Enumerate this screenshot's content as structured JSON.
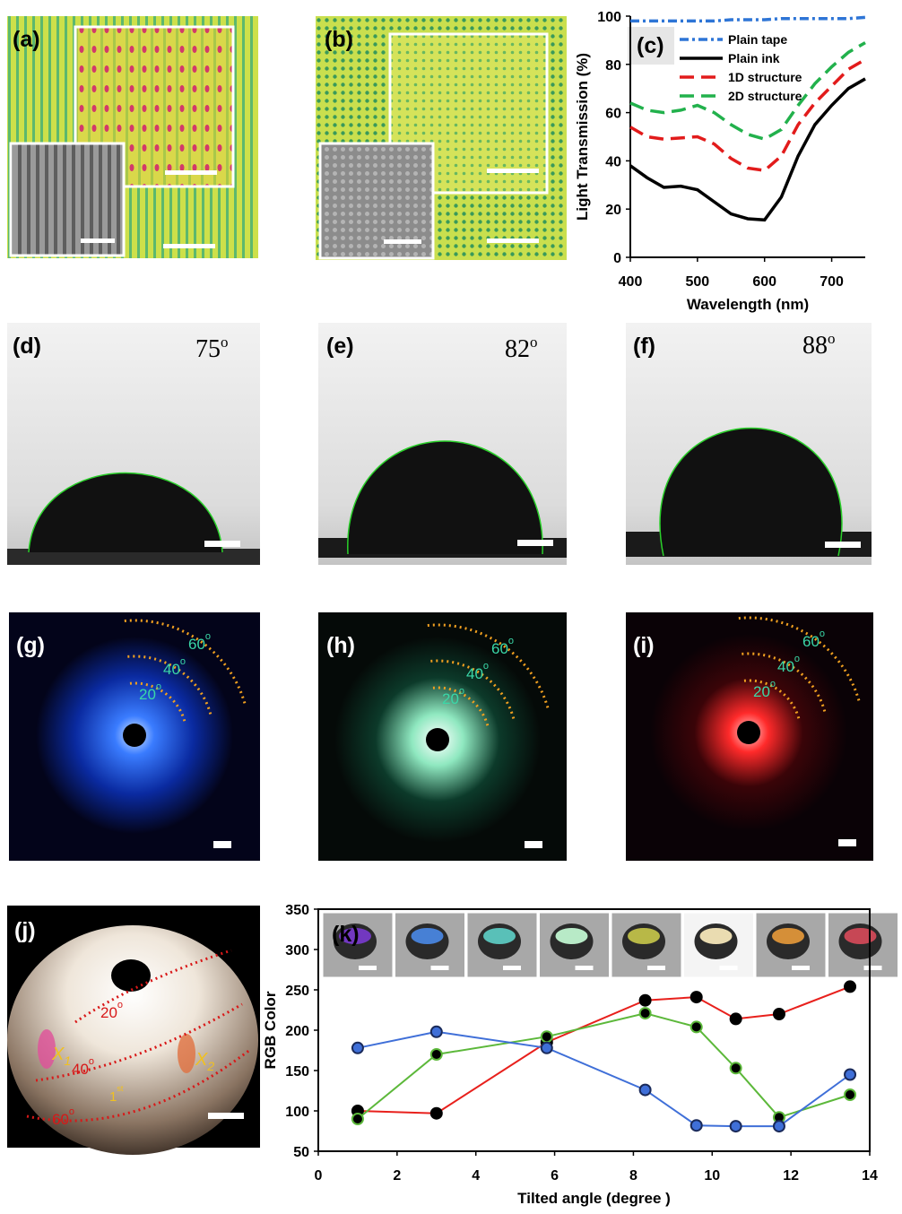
{
  "panel_labels": {
    "a": "(a)",
    "b": "(b)",
    "d": "(d)",
    "e": "(e)",
    "f": "(f)",
    "g": "(g)",
    "h": "(h)",
    "i": "(i)",
    "j": "(j)"
  },
  "contact_angles": [
    {
      "value": "75",
      "sup": "o"
    },
    {
      "value": "82",
      "sup": "o"
    },
    {
      "value": "88",
      "sup": "o"
    }
  ],
  "ring_labels": [
    {
      "value": "20",
      "sup": "o"
    },
    {
      "value": "40",
      "sup": "o"
    },
    {
      "value": "60",
      "sup": "o"
    }
  ],
  "sphere_labels": {
    "rings": [
      {
        "value": "20",
        "sup": "o"
      },
      {
        "value": "40",
        "sup": "o"
      },
      {
        "value": "60",
        "sup": "o"
      }
    ],
    "x1": {
      "value": "X",
      "sub": "1"
    },
    "x2": {
      "value": "X",
      "sub": "2"
    },
    "order": {
      "value": "1",
      "sup": "st"
    }
  },
  "chart_data": [
    {
      "type": "line",
      "panel_label": "(c)",
      "x_label": "Wavelength (nm)",
      "y_label": "Light Transmission (%)",
      "x": [
        400,
        425,
        450,
        475,
        500,
        525,
        550,
        575,
        600,
        625,
        650,
        675,
        700,
        725,
        750
      ],
      "xlim": [
        400,
        750
      ],
      "ylim": [
        0,
        100
      ],
      "xticks": [
        400,
        500,
        600,
        700
      ],
      "yticks": [
        0,
        20,
        40,
        60,
        80,
        100
      ],
      "legend": "upper center",
      "grid": false,
      "series": [
        {
          "name": "Plain tape",
          "color": "#2e75d6",
          "line_style": "dash-dot",
          "values": [
            98,
            98,
            98,
            98,
            98,
            98,
            98.5,
            98.5,
            98.5,
            99,
            99,
            99,
            99,
            99,
            99.5
          ]
        },
        {
          "name": "Plain ink",
          "color": "#000000",
          "line_style": "solid",
          "values": [
            38,
            33,
            29,
            29.5,
            28,
            23,
            18,
            16,
            15.5,
            25,
            42,
            55,
            63,
            70,
            74
          ]
        },
        {
          "name": "1D structure",
          "color": "#e21b1b",
          "line_style": "dashed",
          "values": [
            54,
            50,
            49,
            49.5,
            50,
            47,
            41,
            37,
            36,
            42,
            55,
            64,
            71,
            78,
            82
          ]
        },
        {
          "name": "2D structure",
          "color": "#22b14c",
          "line_style": "dashed",
          "values": [
            64,
            61,
            60,
            61,
            63,
            60,
            55,
            51,
            49,
            53,
            63,
            72,
            79,
            85,
            89
          ]
        }
      ]
    },
    {
      "type": "line",
      "panel_label": "(k)",
      "x_label": "Tilted angle (degree )",
      "y_label": "RGB Color",
      "x": [
        1,
        3,
        5.8,
        8.3,
        9.6,
        10.6,
        11.7,
        13.5
      ],
      "xlim": [
        0,
        14
      ],
      "ylim": [
        50,
        350
      ],
      "xticks": [
        0,
        2,
        4,
        6,
        8,
        10,
        12,
        14
      ],
      "yticks": [
        50,
        100,
        150,
        200,
        250,
        300,
        350
      ],
      "frame": true,
      "markers": true,
      "grid": false,
      "series": [
        {
          "color": "#e8201c",
          "line_style": "solid",
          "marker_fill": "#000000",
          "marker_edge": "#000000",
          "values": [
            100,
            97,
            185,
            237,
            241,
            214,
            220,
            254
          ]
        },
        {
          "color": "#5cb83a",
          "line_style": "solid",
          "marker_fill": "#000000",
          "marker_edge": "#5cb83a",
          "values": [
            90,
            170,
            192,
            221,
            204,
            153,
            92,
            120
          ]
        },
        {
          "color": "#3f6fd8",
          "line_style": "solid",
          "marker_fill": "#3f6fd8",
          "marker_edge": "#1a2a5a",
          "values": [
            178,
            198,
            178,
            126,
            82,
            81,
            81,
            145
          ]
        }
      ]
    }
  ]
}
